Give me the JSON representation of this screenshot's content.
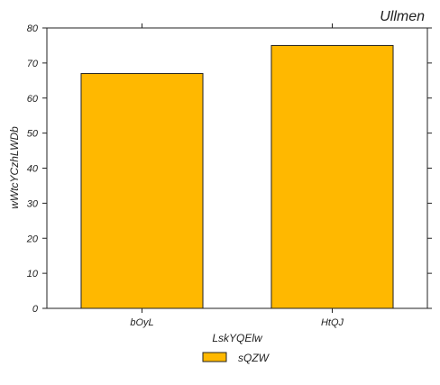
{
  "chart_data": {
    "type": "bar",
    "title": "Ullmen",
    "xlabel": "LskYQElw",
    "ylabel": "wWtcYCzhLWDb",
    "categories": [
      "bOyL",
      "HtQJ"
    ],
    "series": [
      {
        "name": "sQZW",
        "values": [
          67,
          75
        ],
        "color": "#FFB800"
      }
    ],
    "ylim": [
      0,
      80
    ],
    "yticks": [
      0,
      10,
      20,
      30,
      40,
      50,
      60,
      70,
      80
    ],
    "grid": false,
    "legend": "bottom-center",
    "edge_color": "#222222"
  }
}
